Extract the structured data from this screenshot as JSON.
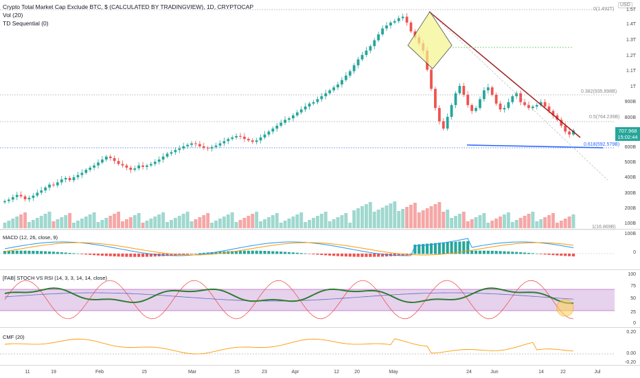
{
  "legend": {
    "symbol": "Crypto Total Market Cap Exclude BTC, $ (CALCULATED BY TRADINGVIEW), 1D, CRYPTOCAP",
    "vol": "Vol (20)",
    "td": "TD Sequential (0)"
  },
  "currency_button": "USD",
  "price_axis": [
    "1.5T",
    "1.4T",
    "1.3T",
    "1.2T",
    "1.1T",
    "1T",
    "900B",
    "800B",
    "700B",
    "600B",
    "500B",
    "400B",
    "300B",
    "200B",
    "100B"
  ],
  "last_price": {
    "value": "707.968",
    "countdown": "15:02:44"
  },
  "fib_levels": [
    {
      "label": "0(1.492T)"
    },
    {
      "label": "0.382(935.898B)"
    },
    {
      "label": "0.5(764.239B)"
    },
    {
      "label": "0.618(592.579B)"
    },
    {
      "label": "1(16.869B)"
    }
  ],
  "panes": {
    "macd": {
      "label": "MACD (12, 26, close, 9)",
      "axis": [
        "100B",
        "0"
      ]
    },
    "stoch": {
      "label": "[FAB] STOCH VS RSI (14, 3, 3, 14, 14, close)",
      "axis": [
        "100",
        "75",
        "50",
        "25",
        "0"
      ]
    },
    "cmf": {
      "label": "CMF (20)",
      "axis": [
        "0.20",
        "0.00",
        "-0.20"
      ]
    }
  },
  "x_axis": [
    "11",
    "19",
    "Feb",
    "15",
    "Mar",
    "15",
    "23",
    "Apr",
    "12",
    "20",
    "May",
    "24",
    "Jun",
    "14",
    "22",
    "Jul"
  ],
  "chart_data": {
    "type": "candlestick",
    "title": "Crypto Total Market Cap Exclude BTC, $ (CALCULATED BY TRADINGVIEW), 1D, CRYPTOCAP",
    "y_unit": "USD",
    "last_close": 707.968,
    "colors": {
      "up": "#26a69a",
      "down": "#ef5350",
      "resistance": "#9c1c1c",
      "support": "#2962ff"
    },
    "close_series_B": [
      228,
      238,
      255,
      270,
      260,
      240,
      250,
      265,
      285,
      300,
      320,
      340,
      335,
      355,
      375,
      385,
      370,
      390,
      405,
      420,
      440,
      455,
      470,
      490,
      510,
      530,
      520,
      500,
      480,
      470,
      455,
      440,
      450,
      470,
      460,
      470,
      480,
      495,
      510,
      530,
      550,
      560,
      575,
      585,
      600,
      610,
      620,
      615,
      600,
      590,
      585,
      595,
      605,
      620,
      635,
      650,
      660,
      670,
      665,
      650,
      640,
      630,
      640,
      660,
      680,
      700,
      720,
      740,
      760,
      780,
      790,
      810,
      830,
      850,
      870,
      890,
      900,
      920,
      940,
      960,
      980,
      1000,
      1020,
      1050,
      1080,
      1110,
      1150,
      1190,
      1220,
      1250,
      1280,
      1320,
      1360,
      1400,
      1420,
      1440,
      1450,
      1470,
      1480,
      1440,
      1380,
      1340,
      1300,
      1250,
      1120,
      990,
      860,
      770,
      720,
      800,
      880,
      960,
      1010,
      950,
      880,
      840,
      860,
      920,
      980,
      1000,
      950,
      890,
      850,
      860,
      900,
      940,
      960,
      900,
      880,
      860,
      870,
      880,
      900,
      870,
      840,
      810,
      780,
      740,
      700,
      680,
      708
    ]
  }
}
